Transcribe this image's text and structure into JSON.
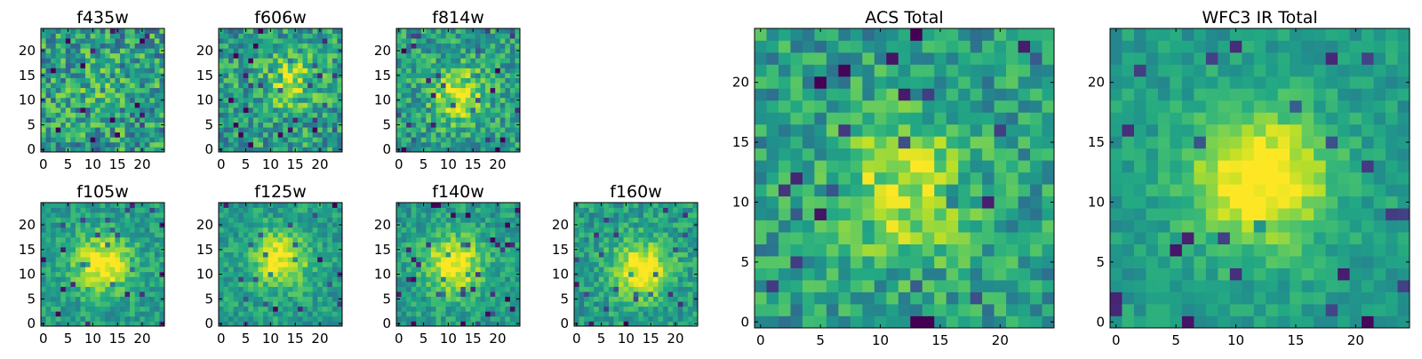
{
  "figure": {
    "panels": [
      {
        "id": "f435w",
        "title": "f435w"
      },
      {
        "id": "f606w",
        "title": "f606w"
      },
      {
        "id": "f814w",
        "title": "f814w"
      },
      {
        "id": "f105w",
        "title": "f105w"
      },
      {
        "id": "f125w",
        "title": "f125w"
      },
      {
        "id": "f140w",
        "title": "f140w"
      },
      {
        "id": "f160w",
        "title": "f160w"
      },
      {
        "id": "acs-total",
        "title": "ACS Total"
      },
      {
        "id": "wfc3-ir-total",
        "title": "WFC3 IR Total"
      }
    ]
  },
  "chart_data": [
    {
      "type": "heatmap",
      "title": "f435w",
      "grid_size": [
        25,
        25
      ],
      "xlim": [
        0,
        24
      ],
      "ylim": [
        0,
        24
      ],
      "xticks": [
        0,
        5,
        10,
        15,
        20
      ],
      "yticks": [
        0,
        5,
        10,
        15,
        20
      ],
      "colormap": "viridis",
      "peak": [
        12,
        12
      ],
      "peak_strength": 0.1,
      "noise": 0.42,
      "seed": 11
    },
    {
      "type": "heatmap",
      "title": "f606w",
      "grid_size": [
        25,
        25
      ],
      "xlim": [
        0,
        24
      ],
      "ylim": [
        0,
        24
      ],
      "xticks": [
        0,
        5,
        10,
        15,
        20
      ],
      "yticks": [
        0,
        5,
        10,
        15,
        20
      ],
      "colormap": "viridis",
      "peak": [
        14,
        14
      ],
      "peak_strength": 0.32,
      "noise": 0.36,
      "seed": 23
    },
    {
      "type": "heatmap",
      "title": "f814w",
      "grid_size": [
        25,
        25
      ],
      "xlim": [
        0,
        24
      ],
      "ylim": [
        0,
        24
      ],
      "xticks": [
        0,
        5,
        10,
        15,
        20
      ],
      "yticks": [
        0,
        5,
        10,
        15,
        20
      ],
      "colormap": "viridis",
      "peak": [
        12,
        11
      ],
      "peak_strength": 0.42,
      "noise": 0.32,
      "seed": 37
    },
    {
      "type": "heatmap",
      "title": "f105w",
      "grid_size": [
        25,
        25
      ],
      "xlim": [
        0,
        24
      ],
      "ylim": [
        0,
        24
      ],
      "xticks": [
        0,
        5,
        10,
        15,
        20
      ],
      "yticks": [
        0,
        5,
        10,
        15,
        20
      ],
      "colormap": "viridis",
      "peak": [
        12,
        12
      ],
      "peak_strength": 0.55,
      "noise": 0.22,
      "seed": 41
    },
    {
      "type": "heatmap",
      "title": "f125w",
      "grid_size": [
        25,
        25
      ],
      "xlim": [
        0,
        24
      ],
      "ylim": [
        0,
        24
      ],
      "xticks": [
        0,
        5,
        10,
        15,
        20
      ],
      "yticks": [
        0,
        5,
        10,
        15,
        20
      ],
      "colormap": "viridis",
      "peak": [
        12,
        13
      ],
      "peak_strength": 0.5,
      "noise": 0.22,
      "seed": 53
    },
    {
      "type": "heatmap",
      "title": "f140w",
      "grid_size": [
        25,
        25
      ],
      "xlim": [
        0,
        24
      ],
      "ylim": [
        0,
        24
      ],
      "xticks": [
        0,
        5,
        10,
        15,
        20
      ],
      "yticks": [
        0,
        5,
        10,
        15,
        20
      ],
      "colormap": "viridis",
      "peak": [
        11,
        12
      ],
      "peak_strength": 0.55,
      "noise": 0.22,
      "seed": 67
    },
    {
      "type": "heatmap",
      "title": "f160w",
      "grid_size": [
        25,
        25
      ],
      "xlim": [
        0,
        24
      ],
      "ylim": [
        0,
        24
      ],
      "xticks": [
        0,
        5,
        10,
        15,
        20
      ],
      "yticks": [
        0,
        5,
        10,
        15,
        20
      ],
      "colormap": "viridis",
      "peak": [
        13,
        11
      ],
      "peak_strength": 0.55,
      "noise": 0.24,
      "seed": 79
    },
    {
      "type": "heatmap",
      "title": "ACS Total",
      "grid_size": [
        25,
        25
      ],
      "xlim": [
        0,
        24
      ],
      "ylim": [
        0,
        24
      ],
      "xticks": [
        0,
        5,
        10,
        15,
        20
      ],
      "yticks": [
        0,
        5,
        10,
        15,
        20
      ],
      "colormap": "viridis",
      "peak": [
        12,
        11
      ],
      "peak_strength": 0.4,
      "noise": 0.3,
      "seed": 97
    },
    {
      "type": "heatmap",
      "title": "WFC3 IR Total",
      "grid_size": [
        25,
        25
      ],
      "xlim": [
        0,
        24
      ],
      "ylim": [
        0,
        24
      ],
      "xticks": [
        0,
        5,
        10,
        15,
        20
      ],
      "yticks": [
        0,
        5,
        10,
        15,
        20
      ],
      "colormap": "viridis",
      "peak": [
        12,
        12
      ],
      "peak_strength": 0.6,
      "noise": 0.16,
      "seed": 101
    }
  ]
}
